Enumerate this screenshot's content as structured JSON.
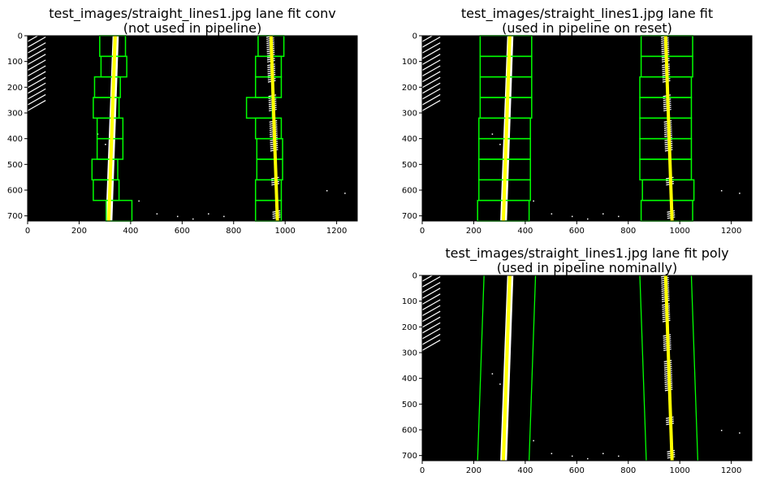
{
  "panels": [
    {
      "title_line1": "test_images/straight_lines1.jpg lane fit conv",
      "title_line2": "(not used in pipeline)",
      "mode": "windows",
      "left_windows_x": [
        330,
        335,
        310,
        305,
        320,
        320,
        300,
        305,
        355
      ],
      "right_windows_x": [
        945,
        935,
        935,
        900,
        935,
        940,
        940,
        935,
        935
      ],
      "window_width": [
        100,
        100,
        100,
        100,
        100,
        100,
        100,
        100,
        100
      ]
    },
    {
      "title_line1": "test_images/straight_lines1.jpg lane fit",
      "title_line2": "(used in pipeline on reset)",
      "mode": "windows",
      "left_windows_x": [
        325,
        325,
        325,
        325,
        320,
        320,
        320,
        320,
        315
      ],
      "right_windows_x": [
        950,
        950,
        945,
        945,
        945,
        945,
        945,
        955,
        950
      ],
      "window_width": [
        200,
        200,
        200,
        200,
        200,
        200,
        200,
        200,
        200
      ]
    },
    {
      "title_line1": "test_images/straight_lines1.jpg lane fit poly",
      "title_line2": "(used in pipeline nominally)",
      "mode": "poly"
    }
  ],
  "chart_data": {
    "type": "heatmap",
    "xlim": [
      0,
      1280
    ],
    "ylim": [
      720,
      0
    ],
    "xticks": [
      0,
      200,
      400,
      600,
      800,
      1000,
      1200
    ],
    "yticks": [
      0,
      100,
      200,
      300,
      400,
      500,
      600,
      700
    ],
    "left_lane_fit": {
      "x_top": 340,
      "x_bottom": 315
    },
    "right_lane_fit": {
      "x_top": 945,
      "x_bottom": 970
    },
    "poly_margin": 100,
    "colors": {
      "fit": "#ffff00",
      "window": "#00ff00",
      "background": "#000000",
      "pixels": "#ffffff"
    }
  }
}
